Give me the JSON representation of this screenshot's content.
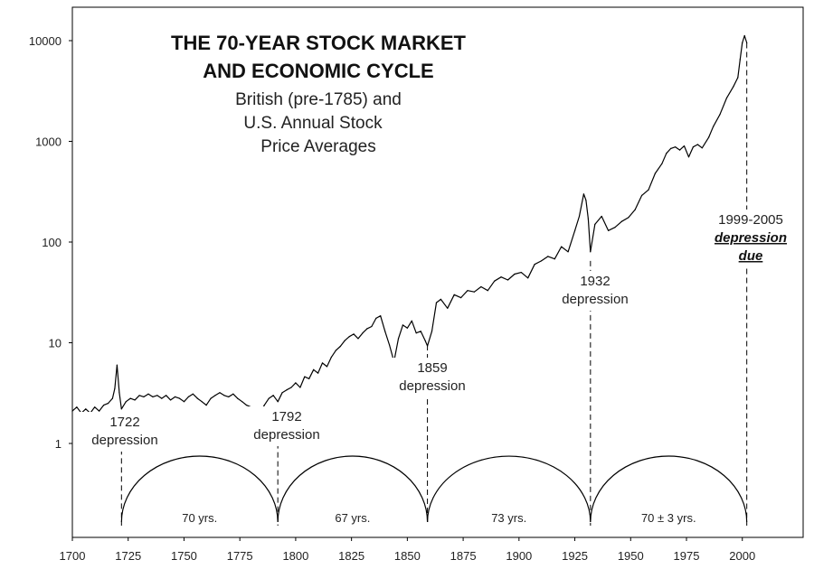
{
  "chart_data": {
    "type": "line",
    "title_lines": [
      "THE 70-YEAR STOCK MARKET",
      "AND ECONOMIC CYCLE"
    ],
    "subtitle_lines": [
      "British (pre-1785) and",
      "U.S. Annual Stock",
      "Price Averages"
    ],
    "y_scale": "log",
    "ylim": [
      0.12,
      16000
    ],
    "xlim": [
      1700,
      2030
    ],
    "x_ticks": [
      "1700",
      "1725",
      "1750",
      "1775",
      "1800",
      "1825",
      "1850",
      "1875",
      "1900",
      "1925",
      "1950",
      "1975",
      "2000"
    ],
    "y_ticks": [
      "1",
      "10",
      "100",
      "1000",
      "10000"
    ],
    "grid": false,
    "series": [
      {
        "x": [
          1700,
          1702,
          1704,
          1706,
          1708,
          1710,
          1712,
          1714,
          1716,
          1718,
          1719,
          1720,
          1721,
          1722,
          1724,
          1726,
          1728,
          1730,
          1732,
          1734,
          1736,
          1738,
          1740,
          1742,
          1744,
          1746,
          1748,
          1750,
          1752,
          1754,
          1756,
          1758,
          1760,
          1762,
          1764,
          1766,
          1768,
          1770,
          1772,
          1774,
          1776,
          1778,
          1780,
          1782,
          1784,
          1786,
          1788,
          1790,
          1792,
          1794,
          1796,
          1798,
          1800,
          1802,
          1804,
          1806,
          1808,
          1810,
          1812,
          1814,
          1816,
          1818,
          1820,
          1822,
          1824,
          1826,
          1828,
          1830,
          1832,
          1834,
          1836,
          1838,
          1840,
          1842,
          1844,
          1846,
          1848,
          1850,
          1852,
          1854,
          1856,
          1858,
          1859,
          1861,
          1863,
          1865,
          1868,
          1871,
          1874,
          1877,
          1880,
          1883,
          1886,
          1889,
          1892,
          1895,
          1898,
          1901,
          1904,
          1907,
          1910,
          1913,
          1916,
          1919,
          1922,
          1925,
          1927,
          1929,
          1930,
          1931,
          1932,
          1934,
          1937,
          1940,
          1943,
          1946,
          1949,
          1952,
          1955,
          1958,
          1961,
          1964,
          1966,
          1968,
          1970,
          1972,
          1974,
          1976,
          1978,
          1980,
          1982,
          1985,
          1987,
          1990,
          1993,
          1996,
          1998,
          1999,
          2000,
          2001,
          2002
        ],
        "y": [
          2.1,
          2.3,
          2.0,
          2.2,
          2.0,
          2.3,
          2.1,
          2.4,
          2.5,
          2.8,
          3.5,
          6.0,
          3.2,
          2.2,
          2.6,
          2.8,
          2.7,
          3.0,
          2.9,
          3.1,
          2.9,
          3.0,
          2.8,
          3.0,
          2.7,
          2.9,
          2.8,
          2.6,
          2.9,
          3.1,
          2.8,
          2.6,
          2.4,
          2.8,
          3.0,
          3.2,
          3.0,
          2.9,
          3.1,
          2.8,
          2.6,
          2.4,
          2.3,
          2.1,
          2.0,
          2.4,
          2.8,
          3.0,
          2.6,
          3.2,
          3.4,
          3.6,
          4.0,
          3.6,
          4.6,
          4.4,
          5.4,
          5.0,
          6.3,
          5.8,
          7.2,
          8.4,
          9.2,
          10.5,
          11.5,
          12.2,
          11.0,
          12.5,
          13.8,
          14.5,
          17.5,
          18.5,
          13.0,
          9.5,
          6.5,
          11.0,
          15.0,
          14.0,
          16.5,
          12.5,
          13.0,
          10.5,
          9.3,
          13.0,
          25.0,
          27.0,
          22.0,
          30.0,
          28.0,
          33.0,
          32.0,
          36.0,
          33.0,
          41.0,
          45.0,
          42.0,
          48.0,
          50.0,
          44.0,
          60.0,
          65.0,
          72.0,
          68.0,
          90.0,
          80.0,
          130.0,
          180.0,
          300.0,
          260.0,
          170.0,
          80.0,
          150.0,
          180.0,
          130.0,
          140.0,
          160.0,
          175.0,
          210.0,
          290.0,
          330.0,
          480.0,
          600.0,
          760.0,
          850.0,
          880.0,
          820.0,
          900.0,
          700.0,
          880.0,
          930.0,
          860.0,
          1100.0,
          1400.0,
          1850.0,
          2700.0,
          3500.0,
          4300.0,
          6500.0,
          9500.0,
          11200.0,
          9500.0
        ]
      }
    ],
    "depressions": [
      {
        "year": 1722,
        "lines": [
          "1722",
          "depression"
        ]
      },
      {
        "year": 1792,
        "lines": [
          "1792",
          "depression"
        ]
      },
      {
        "year": 1859,
        "lines": [
          "1859",
          "depression"
        ]
      },
      {
        "year": 1932,
        "lines": [
          "1932",
          "depression"
        ]
      },
      {
        "year": 2002,
        "lines": [
          "1999-2005",
          "depression",
          "due"
        ]
      }
    ],
    "cycles": [
      {
        "from": 1722,
        "to": 1792,
        "label": "70 yrs."
      },
      {
        "from": 1792,
        "to": 1859,
        "label": "67 yrs."
      },
      {
        "from": 1859,
        "to": 1932,
        "label": "73 yrs."
      },
      {
        "from": 1932,
        "to": 2002,
        "label": "70 ± 3 yrs."
      }
    ]
  }
}
